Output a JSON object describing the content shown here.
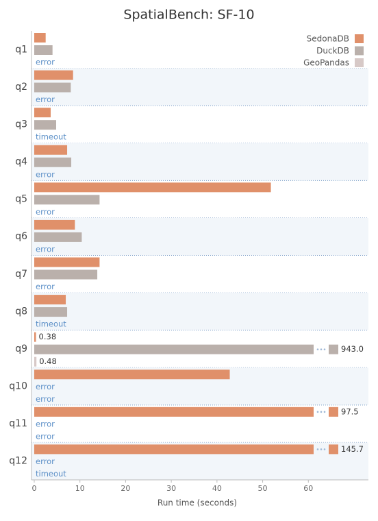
{
  "chart_data": {
    "type": "bar",
    "orientation": "horizontal",
    "title": "SpatialBench: SF-10",
    "x_label": "Run time (seconds)",
    "categories": [
      "q1",
      "q2",
      "q3",
      "q4",
      "q5",
      "q6",
      "q7",
      "q8",
      "q9",
      "q10",
      "q11",
      "q12"
    ],
    "series": [
      {
        "name": "SedonaDB",
        "color": "#e0906a",
        "values": [
          2.5,
          8.5,
          3.6,
          7.2,
          51.8,
          8.9,
          14.3,
          6.9,
          0.38,
          42.8,
          97.5,
          145.7
        ],
        "value_labels": [
          null,
          null,
          null,
          null,
          null,
          null,
          null,
          null,
          "0.38",
          null,
          "97.5",
          "145.7"
        ]
      },
      {
        "name": "DuckDB",
        "color": "#bab0ab",
        "values": [
          4.0,
          8.0,
          4.8,
          8.1,
          14.3,
          10.4,
          13.8,
          7.2,
          943.0,
          null,
          null,
          null
        ],
        "value_labels": [
          null,
          null,
          null,
          null,
          null,
          null,
          null,
          null,
          "943.0",
          "error",
          "error",
          "error"
        ]
      },
      {
        "name": "GeoPandas",
        "color": "#d7c9c7",
        "values": [
          null,
          null,
          null,
          null,
          null,
          null,
          null,
          null,
          0.48,
          null,
          null,
          null
        ],
        "value_labels": [
          "error",
          "error",
          "timeout",
          "error",
          "error",
          "error",
          "error",
          "timeout",
          "0.48",
          "error",
          "error",
          "timeout"
        ]
      }
    ],
    "xlim": [
      0,
      73
    ],
    "xticks": [
      0,
      10,
      20,
      30,
      40,
      50,
      60
    ],
    "legend": "top-right"
  }
}
